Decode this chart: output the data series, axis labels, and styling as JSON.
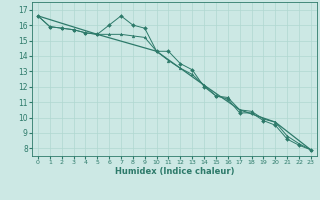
{
  "xlabel": "Humidex (Indice chaleur)",
  "bg_color": "#cce8e4",
  "grid_color": "#b0d8d0",
  "line_color": "#2d7a6a",
  "xlim": [
    -0.5,
    23.5
  ],
  "ylim": [
    7.5,
    17.5
  ],
  "xticks": [
    0,
    1,
    2,
    3,
    4,
    5,
    6,
    7,
    8,
    9,
    10,
    11,
    12,
    13,
    14,
    15,
    16,
    17,
    18,
    19,
    20,
    21,
    22,
    23
  ],
  "yticks": [
    8,
    9,
    10,
    11,
    12,
    13,
    14,
    15,
    16,
    17
  ],
  "series1_x": [
    0,
    1,
    2,
    3,
    4,
    5,
    6,
    7,
    8,
    9,
    10,
    11,
    12,
    13,
    14,
    15,
    16,
    17,
    18,
    19,
    20,
    21,
    22,
    23
  ],
  "series1_y": [
    16.6,
    15.9,
    15.8,
    15.7,
    15.5,
    15.4,
    16.0,
    16.6,
    16.0,
    15.8,
    14.3,
    14.3,
    13.5,
    13.1,
    12.0,
    11.4,
    11.2,
    10.3,
    10.3,
    9.8,
    9.5,
    8.6,
    8.2,
    7.9
  ],
  "series2_x": [
    0,
    1,
    2,
    3,
    4,
    5,
    6,
    7,
    8,
    9,
    10,
    11,
    12,
    13,
    14,
    15,
    16,
    17,
    18,
    19,
    20,
    21,
    22,
    23
  ],
  "series2_y": [
    16.6,
    15.9,
    15.8,
    15.7,
    15.5,
    15.4,
    15.4,
    15.4,
    15.3,
    15.2,
    14.3,
    13.7,
    13.2,
    12.8,
    12.1,
    11.4,
    11.3,
    10.5,
    10.4,
    9.9,
    9.7,
    8.8,
    8.3,
    7.9
  ],
  "series3_x": [
    0,
    5,
    10,
    14,
    17,
    20,
    23
  ],
  "series3_y": [
    16.6,
    15.4,
    14.3,
    12.1,
    10.5,
    9.7,
    7.9
  ]
}
